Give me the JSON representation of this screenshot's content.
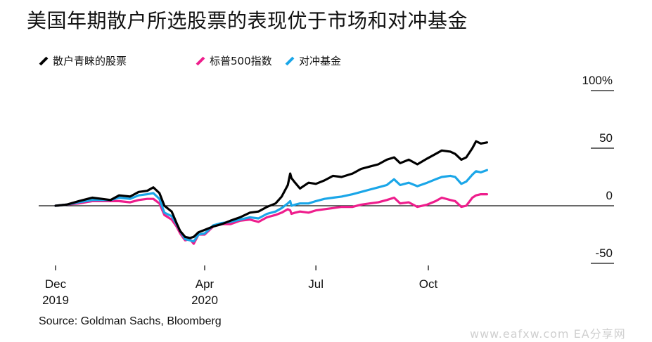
{
  "title": "美国年期散户所选股票的表现优于市场和对冲基金",
  "source": "Source: Goldman Sachs, Bloomberg",
  "watermark": "www.eafxw.com  EA分享网",
  "colors": {
    "retail": "#000000",
    "sp500": "#ee1d8c",
    "hedge": "#1aa6e8",
    "axis": "#111111",
    "background": "#ffffff"
  },
  "chart_data": {
    "type": "line",
    "x_type": "date",
    "xlim": [
      "2019-12-01",
      "2020-11-24"
    ],
    "ylim": [
      -50,
      100
    ],
    "y_ticks": [
      {
        "value": 100,
        "label": "100%"
      },
      {
        "value": 50,
        "label": "50"
      },
      {
        "value": 0,
        "label": "0"
      },
      {
        "value": -50,
        "label": "-50"
      }
    ],
    "x_ticks": [
      {
        "date": "2019-12-01",
        "line1": "Dec",
        "line2": "2019"
      },
      {
        "date": "2020-04-01",
        "line1": "Apr",
        "line2": "2020"
      },
      {
        "date": "2020-07-01",
        "line1": "Jul",
        "line2": ""
      },
      {
        "date": "2020-10-01",
        "line1": "Oct",
        "line2": ""
      }
    ],
    "series": [
      {
        "name": "散户青睐的股票",
        "key": "retail",
        "points": [
          [
            "2019-12-01",
            0
          ],
          [
            "2019-12-10",
            1
          ],
          [
            "2019-12-20",
            4
          ],
          [
            "2019-12-31",
            7
          ],
          [
            "2020-01-08",
            6
          ],
          [
            "2020-01-15",
            5
          ],
          [
            "2020-01-22",
            9
          ],
          [
            "2020-01-31",
            8
          ],
          [
            "2020-02-07",
            12
          ],
          [
            "2020-02-14",
            13
          ],
          [
            "2020-02-19",
            16
          ],
          [
            "2020-02-24",
            11
          ],
          [
            "2020-02-28",
            0
          ],
          [
            "2020-03-05",
            -5
          ],
          [
            "2020-03-09",
            -15
          ],
          [
            "2020-03-12",
            -22
          ],
          [
            "2020-03-16",
            -27
          ],
          [
            "2020-03-20",
            -28
          ],
          [
            "2020-03-23",
            -27
          ],
          [
            "2020-03-27",
            -23
          ],
          [
            "2020-04-01",
            -21
          ],
          [
            "2020-04-08",
            -18
          ],
          [
            "2020-04-15",
            -16
          ],
          [
            "2020-04-22",
            -13
          ],
          [
            "2020-04-30",
            -10
          ],
          [
            "2020-05-08",
            -6
          ],
          [
            "2020-05-15",
            -5
          ],
          [
            "2020-05-22",
            -1
          ],
          [
            "2020-05-29",
            2
          ],
          [
            "2020-06-03",
            8
          ],
          [
            "2020-06-08",
            18
          ],
          [
            "2020-06-10",
            28
          ],
          [
            "2020-06-11",
            24
          ],
          [
            "2020-06-14",
            20
          ],
          [
            "2020-06-18",
            15
          ],
          [
            "2020-06-25",
            20
          ],
          [
            "2020-07-01",
            19
          ],
          [
            "2020-07-08",
            22
          ],
          [
            "2020-07-15",
            26
          ],
          [
            "2020-07-22",
            25
          ],
          [
            "2020-07-31",
            28
          ],
          [
            "2020-08-07",
            32
          ],
          [
            "2020-08-14",
            34
          ],
          [
            "2020-08-21",
            36
          ],
          [
            "2020-08-28",
            40
          ],
          [
            "2020-09-03",
            42
          ],
          [
            "2020-09-08",
            37
          ],
          [
            "2020-09-15",
            40
          ],
          [
            "2020-09-22",
            36
          ],
          [
            "2020-09-30",
            41
          ],
          [
            "2020-10-07",
            45
          ],
          [
            "2020-10-12",
            48
          ],
          [
            "2020-10-19",
            47
          ],
          [
            "2020-10-23",
            45
          ],
          [
            "2020-10-28",
            40
          ],
          [
            "2020-11-01",
            42
          ],
          [
            "2020-11-06",
            50
          ],
          [
            "2020-11-09",
            56
          ],
          [
            "2020-11-13",
            54
          ],
          [
            "2020-11-18",
            55
          ]
        ]
      },
      {
        "name": "标普500指数",
        "key": "sp500",
        "points": [
          [
            "2019-12-01",
            0
          ],
          [
            "2019-12-10",
            1
          ],
          [
            "2019-12-20",
            2
          ],
          [
            "2019-12-31",
            4
          ],
          [
            "2020-01-08",
            4
          ],
          [
            "2020-01-15",
            4
          ],
          [
            "2020-01-22",
            4
          ],
          [
            "2020-01-31",
            3
          ],
          [
            "2020-02-07",
            5
          ],
          [
            "2020-02-14",
            6
          ],
          [
            "2020-02-19",
            6
          ],
          [
            "2020-02-24",
            2
          ],
          [
            "2020-02-28",
            -8
          ],
          [
            "2020-03-05",
            -12
          ],
          [
            "2020-03-09",
            -18
          ],
          [
            "2020-03-12",
            -24
          ],
          [
            "2020-03-16",
            -30
          ],
          [
            "2020-03-20",
            -29
          ],
          [
            "2020-03-23",
            -33
          ],
          [
            "2020-03-27",
            -25
          ],
          [
            "2020-04-01",
            -25
          ],
          [
            "2020-04-08",
            -18
          ],
          [
            "2020-04-15",
            -16
          ],
          [
            "2020-04-22",
            -16
          ],
          [
            "2020-04-30",
            -13
          ],
          [
            "2020-05-08",
            -12
          ],
          [
            "2020-05-15",
            -14
          ],
          [
            "2020-05-22",
            -10
          ],
          [
            "2020-05-29",
            -8
          ],
          [
            "2020-06-03",
            -6
          ],
          [
            "2020-06-08",
            -3
          ],
          [
            "2020-06-10",
            -4
          ],
          [
            "2020-06-11",
            -7
          ],
          [
            "2020-06-14",
            -6
          ],
          [
            "2020-06-18",
            -5
          ],
          [
            "2020-06-25",
            -6
          ],
          [
            "2020-07-01",
            -4
          ],
          [
            "2020-07-08",
            -3
          ],
          [
            "2020-07-15",
            -2
          ],
          [
            "2020-07-22",
            -1
          ],
          [
            "2020-07-31",
            -1
          ],
          [
            "2020-08-07",
            1
          ],
          [
            "2020-08-14",
            2
          ],
          [
            "2020-08-21",
            3
          ],
          [
            "2020-08-28",
            5
          ],
          [
            "2020-09-03",
            7
          ],
          [
            "2020-09-08",
            2
          ],
          [
            "2020-09-15",
            3
          ],
          [
            "2020-09-22",
            -1
          ],
          [
            "2020-09-30",
            1
          ],
          [
            "2020-10-07",
            4
          ],
          [
            "2020-10-12",
            7
          ],
          [
            "2020-10-19",
            5
          ],
          [
            "2020-10-23",
            4
          ],
          [
            "2020-10-28",
            -1
          ],
          [
            "2020-11-01",
            0
          ],
          [
            "2020-11-06",
            7
          ],
          [
            "2020-11-09",
            9
          ],
          [
            "2020-11-13",
            10
          ],
          [
            "2020-11-18",
            10
          ]
        ]
      },
      {
        "name": "对冲基金",
        "key": "hedge",
        "points": [
          [
            "2019-12-01",
            0
          ],
          [
            "2019-12-10",
            1
          ],
          [
            "2019-12-20",
            3
          ],
          [
            "2019-12-31",
            5
          ],
          [
            "2020-01-08",
            5
          ],
          [
            "2020-01-15",
            5
          ],
          [
            "2020-01-22",
            7
          ],
          [
            "2020-01-31",
            6
          ],
          [
            "2020-02-07",
            9
          ],
          [
            "2020-02-14",
            10
          ],
          [
            "2020-02-19",
            11
          ],
          [
            "2020-02-24",
            6
          ],
          [
            "2020-02-28",
            -6
          ],
          [
            "2020-03-05",
            -9
          ],
          [
            "2020-03-09",
            -16
          ],
          [
            "2020-03-12",
            -22
          ],
          [
            "2020-03-16",
            -29
          ],
          [
            "2020-03-20",
            -30
          ],
          [
            "2020-03-23",
            -31
          ],
          [
            "2020-03-27",
            -25
          ],
          [
            "2020-04-01",
            -24
          ],
          [
            "2020-04-08",
            -17
          ],
          [
            "2020-04-15",
            -15
          ],
          [
            "2020-04-22",
            -14
          ],
          [
            "2020-04-30",
            -12
          ],
          [
            "2020-05-08",
            -10
          ],
          [
            "2020-05-15",
            -11
          ],
          [
            "2020-05-22",
            -7
          ],
          [
            "2020-05-29",
            -5
          ],
          [
            "2020-06-03",
            -2
          ],
          [
            "2020-06-08",
            2
          ],
          [
            "2020-06-10",
            4
          ],
          [
            "2020-06-11",
            0
          ],
          [
            "2020-06-14",
            1
          ],
          [
            "2020-06-18",
            2
          ],
          [
            "2020-06-25",
            2
          ],
          [
            "2020-07-01",
            4
          ],
          [
            "2020-07-08",
            6
          ],
          [
            "2020-07-15",
            7
          ],
          [
            "2020-07-22",
            8
          ],
          [
            "2020-07-31",
            10
          ],
          [
            "2020-08-07",
            12
          ],
          [
            "2020-08-14",
            14
          ],
          [
            "2020-08-21",
            16
          ],
          [
            "2020-08-28",
            18
          ],
          [
            "2020-09-03",
            23
          ],
          [
            "2020-09-08",
            18
          ],
          [
            "2020-09-15",
            20
          ],
          [
            "2020-09-22",
            17
          ],
          [
            "2020-09-30",
            20
          ],
          [
            "2020-10-07",
            23
          ],
          [
            "2020-10-12",
            25
          ],
          [
            "2020-10-19",
            26
          ],
          [
            "2020-10-23",
            25
          ],
          [
            "2020-10-28",
            19
          ],
          [
            "2020-11-01",
            21
          ],
          [
            "2020-11-06",
            27
          ],
          [
            "2020-11-09",
            30
          ],
          [
            "2020-11-13",
            29
          ],
          [
            "2020-11-18",
            31
          ]
        ]
      }
    ]
  }
}
